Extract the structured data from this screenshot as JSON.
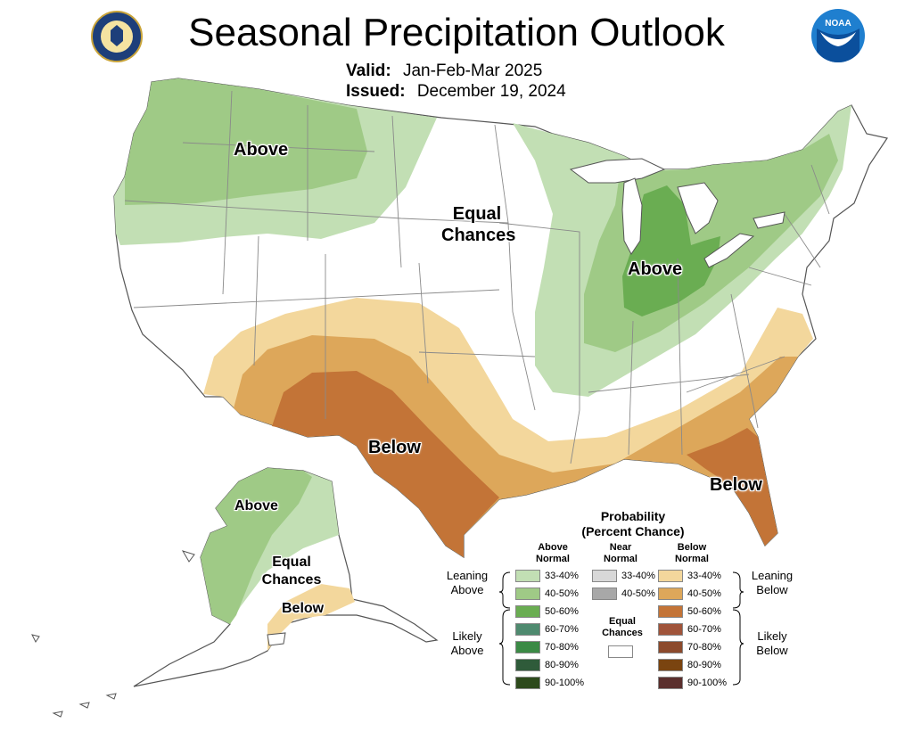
{
  "title": "Seasonal Precipitation Outlook",
  "valid_label": "Valid:",
  "valid_value": "Jan-Feb-Mar 2025",
  "issued_label": "Issued:",
  "issued_value": "December 19, 2024",
  "logos": {
    "left": "dept-of-commerce-seal",
    "right": "noaa-logo",
    "right_text": "NOAA"
  },
  "map_labels": {
    "nw_above": "Above",
    "equal_1": "Equal",
    "equal_2": "Chances",
    "mw_above": "Above",
    "sw_below": "Below",
    "se_below": "Below",
    "ak_above": "Above",
    "ak_equal_1": "Equal",
    "ak_equal_2": "Chances",
    "ak_below": "Below"
  },
  "legend": {
    "title_1": "Probability",
    "title_2": "(Percent Chance)",
    "above_head_1": "Above",
    "above_head_2": "Normal",
    "near_head_1": "Near",
    "near_head_2": "Normal",
    "below_head_1": "Below",
    "below_head_2": "Normal",
    "leaning_above_1": "Leaning",
    "leaning_above_2": "Above",
    "leaning_below_1": "Leaning",
    "leaning_below_2": "Below",
    "likely_above_1": "Likely",
    "likely_above_2": "Above",
    "likely_below_1": "Likely",
    "likely_below_2": "Below",
    "equal_1": "Equal",
    "equal_2": "Chances",
    "above": [
      {
        "label": "33-40%",
        "color": "#c2dfb4"
      },
      {
        "label": "40-50%",
        "color": "#9fca86"
      },
      {
        "label": "50-60%",
        "color": "#6aad52"
      },
      {
        "label": "60-70%",
        "color": "#4f8a6f"
      },
      {
        "label": "70-80%",
        "color": "#3b8a45"
      },
      {
        "label": "80-90%",
        "color": "#2f5b3a"
      },
      {
        "label": "90-100%",
        "color": "#2d4a1c"
      }
    ],
    "near": [
      {
        "label": "33-40%",
        "color": "#d8d8d8"
      },
      {
        "label": "40-50%",
        "color": "#a8a8a8"
      }
    ],
    "below": [
      {
        "label": "33-40%",
        "color": "#f3d79c"
      },
      {
        "label": "40-50%",
        "color": "#dda75a"
      },
      {
        "label": "50-60%",
        "color": "#c37437"
      },
      {
        "label": "60-70%",
        "color": "#a0543a"
      },
      {
        "label": "70-80%",
        "color": "#8c4a2c"
      },
      {
        "label": "80-90%",
        "color": "#7a4410"
      },
      {
        "label": "90-100%",
        "color": "#5a2f2d"
      }
    ],
    "equal_color": "#ffffff"
  },
  "colors": {
    "above_lean_1": "#c2dfb4",
    "above_lean_2": "#9fca86",
    "above_likely": "#6aad52",
    "below_lean_1": "#f3d79c",
    "below_lean_2": "#dda75a",
    "below_likely": "#c37437",
    "boundary": "#8a8a8a"
  }
}
